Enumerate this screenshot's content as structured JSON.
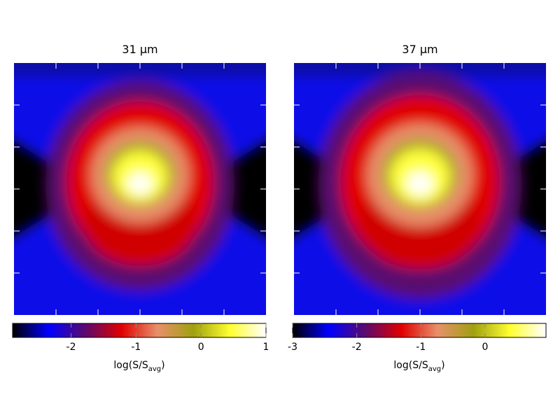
{
  "chart_data": [
    {
      "type": "image",
      "title": "31 μm",
      "colorbar": {
        "label": [
          "log(S/S",
          "avg",
          ")"
        ],
        "clim": [
          -2.9,
          1
        ],
        "ticks": [
          -2,
          -1,
          0,
          1
        ],
        "colormap": [
          "#000000",
          "#0000ff",
          "#5a0a6e",
          "#e00000",
          "#e8906a",
          "#a0a010",
          "#ffff30",
          "#ffffff"
        ]
      }
    },
    {
      "type": "image",
      "title": "37 μm",
      "colorbar": {
        "label": [
          "log(S/S",
          "avg",
          ")"
        ],
        "clim": [
          -3,
          0.95
        ],
        "ticks": [
          -3,
          -2,
          -1,
          0
        ],
        "colormap": [
          "#000000",
          "#0000ff",
          "#5a0a6e",
          "#e00000",
          "#e8906a",
          "#a0a010",
          "#ffff30",
          "#ffffff"
        ]
      }
    }
  ]
}
